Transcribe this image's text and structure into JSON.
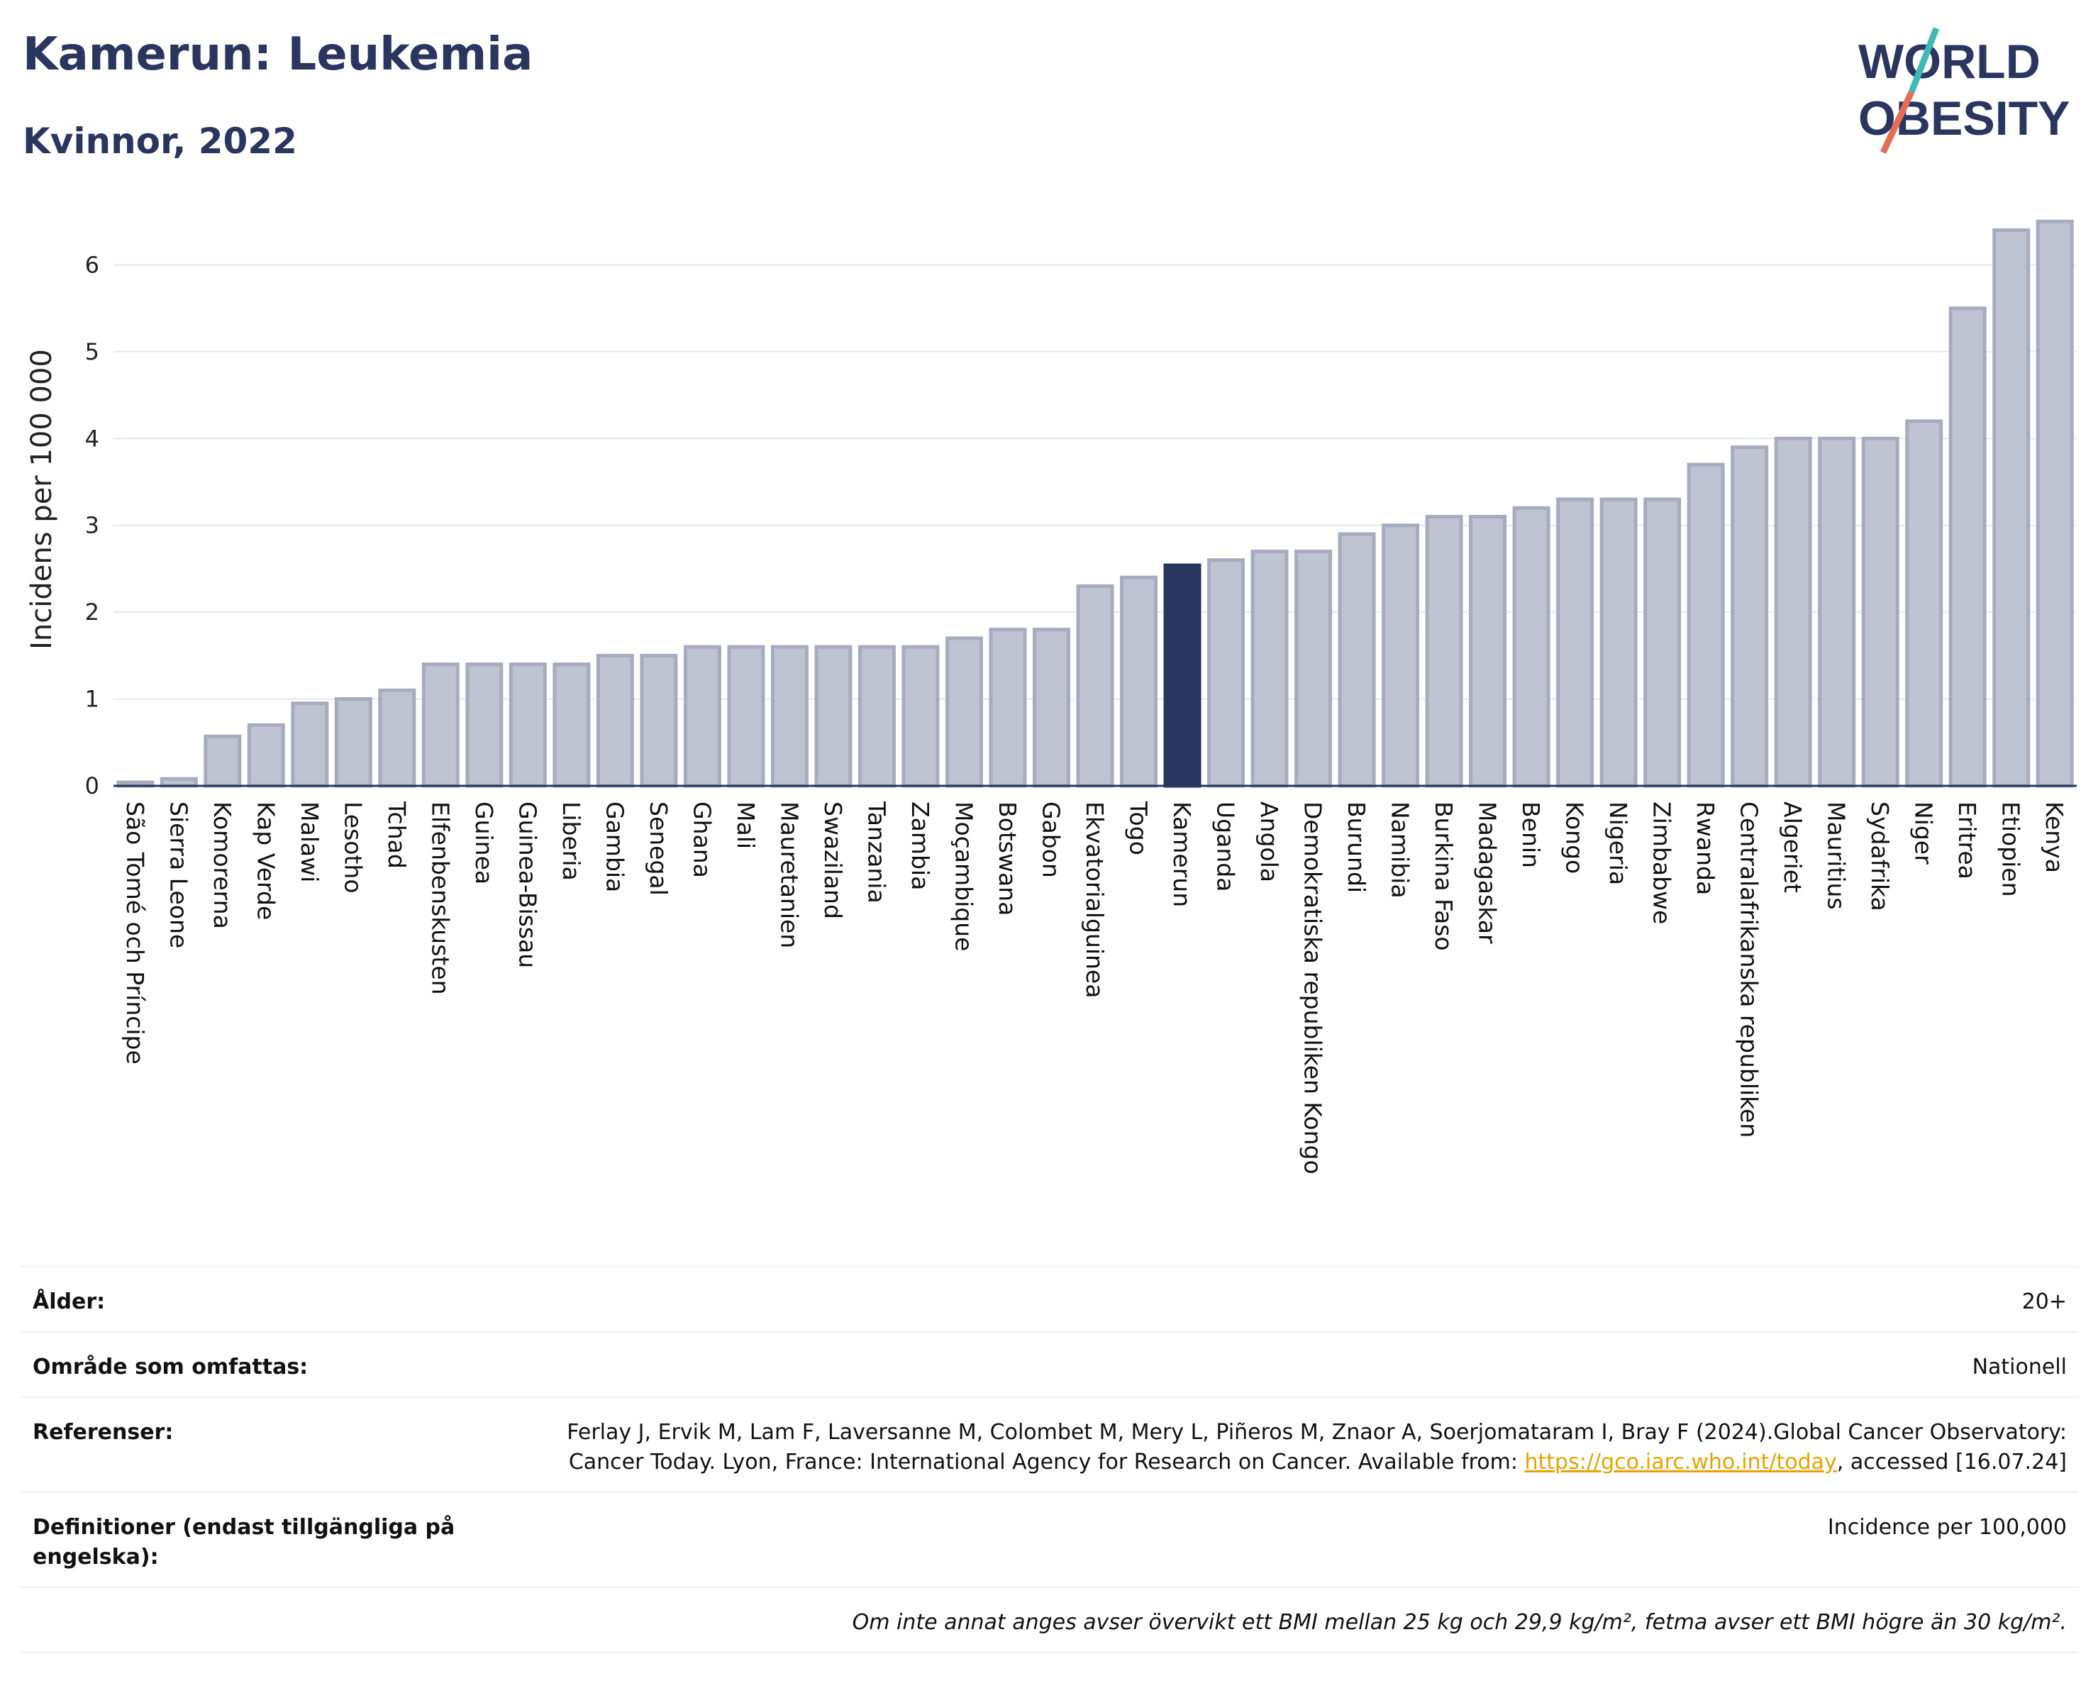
{
  "header": {
    "title": "Kamerun: Leukemia",
    "subtitle": "Kvinnor, 2022",
    "logo_line1": "WORLD",
    "logo_line2": "OBESITY"
  },
  "chart_data": {
    "type": "bar",
    "ylabel": "Incidens per 100 000",
    "xlabel": "",
    "ylim": [
      0,
      6.6
    ],
    "yticks": [
      0,
      1,
      2,
      3,
      4,
      5,
      6
    ],
    "grid": true,
    "highlight": "Kamerun",
    "colors": {
      "bar": "#bfc3d1",
      "bar_edge": "#a6abbd",
      "highlight": "#2a3560",
      "grid": "#e6e8ee"
    },
    "categories": [
      "São Tomé och Príncipe",
      "Sierra Leone",
      "Komorerna",
      "Kap Verde",
      "Malawi",
      "Lesotho",
      "Tchad",
      "Elfenbenskusten",
      "Guinea",
      "Guinea-Bissau",
      "Liberia",
      "Gambia",
      "Senegal",
      "Ghana",
      "Mali",
      "Mauretanien",
      "Swaziland",
      "Tanzania",
      "Zambia",
      "Moçambique",
      "Botswana",
      "Gabon",
      "Ekvatorialguinea",
      "Togo",
      "Kamerun",
      "Uganda",
      "Angola",
      "Demokratiska republiken Kongo",
      "Burundi",
      "Namibia",
      "Burkina Faso",
      "Madagaskar",
      "Benin",
      "Kongo",
      "Nigeria",
      "Zimbabwe",
      "Rwanda",
      "Centralafrikanska republiken",
      "Algeriet",
      "Mauritius",
      "Sydafrika",
      "Niger",
      "Eritrea",
      "Etiopien",
      "Kenya"
    ],
    "values": [
      0.04,
      0.08,
      0.57,
      0.7,
      0.95,
      1.0,
      1.1,
      1.4,
      1.4,
      1.4,
      1.4,
      1.5,
      1.5,
      1.6,
      1.6,
      1.6,
      1.6,
      1.6,
      1.6,
      1.7,
      1.8,
      1.8,
      2.3,
      2.4,
      2.54,
      2.6,
      2.7,
      2.7,
      2.9,
      3.0,
      3.1,
      3.1,
      3.2,
      3.3,
      3.3,
      3.3,
      3.7,
      3.9,
      4.0,
      4.0,
      4.0,
      4.2,
      5.5,
      6.4,
      6.5
    ]
  },
  "info": {
    "age_label": "Ålder:",
    "age_value": "20+",
    "area_label": "Område som omfattas:",
    "area_value": "Nationell",
    "refs_label": "Referenser:",
    "refs_text": "Ferlay J, Ervik M, Lam F, Laversanne M, Colombet M, Mery L, Piñeros M, Znaor A, Soerjomataram I, Bray F (2024).Global Cancer Observatory: Cancer Today. Lyon, France: International Agency for Research on Cancer. Available from: ",
    "refs_link": "https://gco.iarc.who.int/today",
    "refs_tail": ", accessed [16.07.24]",
    "defs_label": "Definitioner (endast tillgängliga på engelska):",
    "defs_value": "Incidence per 100,000",
    "footnote": "Om inte annat anges avser övervikt ett BMI mellan 25 kg och 29,9 kg/m², fetma avser ett BMI högre än 30 kg/m²."
  }
}
